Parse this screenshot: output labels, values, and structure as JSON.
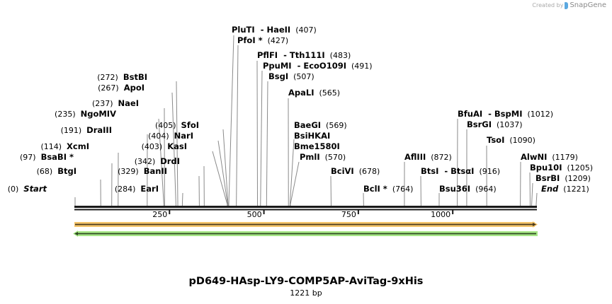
{
  "credit": {
    "text": "Created by",
    "brand": "SnapGene",
    "logo_icon": "snapgene-logo-icon"
  },
  "sequence": {
    "name": "pD649-HAsp-LY9-COMP5AP-AviTag-9xHis",
    "length_label": "1221 bp",
    "length": 1221
  },
  "ruler": {
    "ticks": [
      {
        "value": 250,
        "label": "250"
      },
      {
        "value": 500,
        "label": "500"
      },
      {
        "value": 750,
        "label": "750"
      },
      {
        "value": 1000,
        "label": "1000"
      }
    ]
  },
  "features": [
    {
      "name": "forward-feature",
      "direction": "forward",
      "color": "#f5c56b",
      "stroke": "#5a4a2a"
    },
    {
      "name": "reverse-feature",
      "direction": "reverse",
      "color": "#a8e888",
      "stroke": "#3a5a2a"
    }
  ],
  "sites": [
    {
      "label": "Start",
      "pos": "(0)",
      "bp": 0,
      "side": "left",
      "italic": true
    },
    {
      "label": "BtgI",
      "pos": "(68)",
      "bp": 68,
      "side": "left"
    },
    {
      "label": "BsaBI *",
      "pos": "(97)",
      "bp": 97,
      "side": "left"
    },
    {
      "label": "XcmI",
      "pos": "(114)",
      "bp": 114,
      "side": "left"
    },
    {
      "label": "DraIII",
      "pos": "(191)",
      "bp": 191,
      "side": "left"
    },
    {
      "label": "NgoMIV",
      "pos": "(235)",
      "bp": 235,
      "side": "left"
    },
    {
      "label": "NaeI",
      "pos": "(237)",
      "bp": 237,
      "side": "left"
    },
    {
      "label": "ApoI",
      "pos": "(267)",
      "bp": 267,
      "side": "left"
    },
    {
      "label": "BstBI",
      "pos": "(272)",
      "bp": 272,
      "side": "left"
    },
    {
      "label": "EarI",
      "pos": "(284)",
      "bp": 284,
      "side": "left"
    },
    {
      "label": "BanII",
      "pos": "(329)",
      "bp": 329,
      "side": "left"
    },
    {
      "label": "DrdI",
      "pos": "(342)",
      "bp": 342,
      "side": "left"
    },
    {
      "label": "KasI",
      "pos": "(403)",
      "bp": 403,
      "side": "left"
    },
    {
      "label": "NarI",
      "pos": "(404)",
      "bp": 404,
      "side": "left"
    },
    {
      "label": "SfoI",
      "pos": "(405)",
      "bp": 405,
      "side": "left"
    },
    {
      "label": "PluTI  - HaeII",
      "pos": "(407)",
      "bp": 407,
      "side": "right"
    },
    {
      "label": "PfoI *",
      "pos": "(427)",
      "bp": 427,
      "side": "right"
    },
    {
      "label": "PflFI  - Tth111I",
      "pos": "(483)",
      "bp": 483,
      "side": "right"
    },
    {
      "label": "PpuMI  - EcoO109I",
      "pos": "(491)",
      "bp": 491,
      "side": "right"
    },
    {
      "label": "BsgI",
      "pos": "(507)",
      "bp": 507,
      "side": "right"
    },
    {
      "label": "ApaLI",
      "pos": "(565)",
      "bp": 565,
      "side": "right"
    },
    {
      "label": "BaeGI",
      "pos": "(569)",
      "bp": 569,
      "side": "right"
    },
    {
      "label": "BsiHKAI",
      "pos": "",
      "bp": 569,
      "side": "right"
    },
    {
      "label": "Bme1580I",
      "pos": "",
      "bp": 569,
      "side": "right"
    },
    {
      "label": "PmlI",
      "pos": "(570)",
      "bp": 570,
      "side": "right"
    },
    {
      "label": "BciVI",
      "pos": "(678)",
      "bp": 678,
      "side": "right"
    },
    {
      "label": "BclI *",
      "pos": "(764)",
      "bp": 764,
      "side": "right"
    },
    {
      "label": "AflIII",
      "pos": "(872)",
      "bp": 872,
      "side": "right"
    },
    {
      "label": "BtsI  - BtsαI",
      "pos": "(916)",
      "bp": 916,
      "side": "right"
    },
    {
      "label": "Bsu36I",
      "pos": "(964)",
      "bp": 964,
      "side": "right"
    },
    {
      "label": "BfuAI  - BspMI",
      "pos": "(1012)",
      "bp": 1012,
      "side": "right"
    },
    {
      "label": "BsrGI",
      "pos": "(1037)",
      "bp": 1037,
      "side": "right"
    },
    {
      "label": "TsoI",
      "pos": "(1090)",
      "bp": 1090,
      "side": "right"
    },
    {
      "label": "AlwNI",
      "pos": "(1179)",
      "bp": 1179,
      "side": "right"
    },
    {
      "label": "Bpu10I",
      "pos": "(1205)",
      "bp": 1205,
      "side": "right"
    },
    {
      "label": "BsrBI",
      "pos": "(1209)",
      "bp": 1209,
      "side": "right"
    },
    {
      "label": "End",
      "pos": "(1221)",
      "bp": 1221,
      "side": "right",
      "italic": true
    }
  ]
}
